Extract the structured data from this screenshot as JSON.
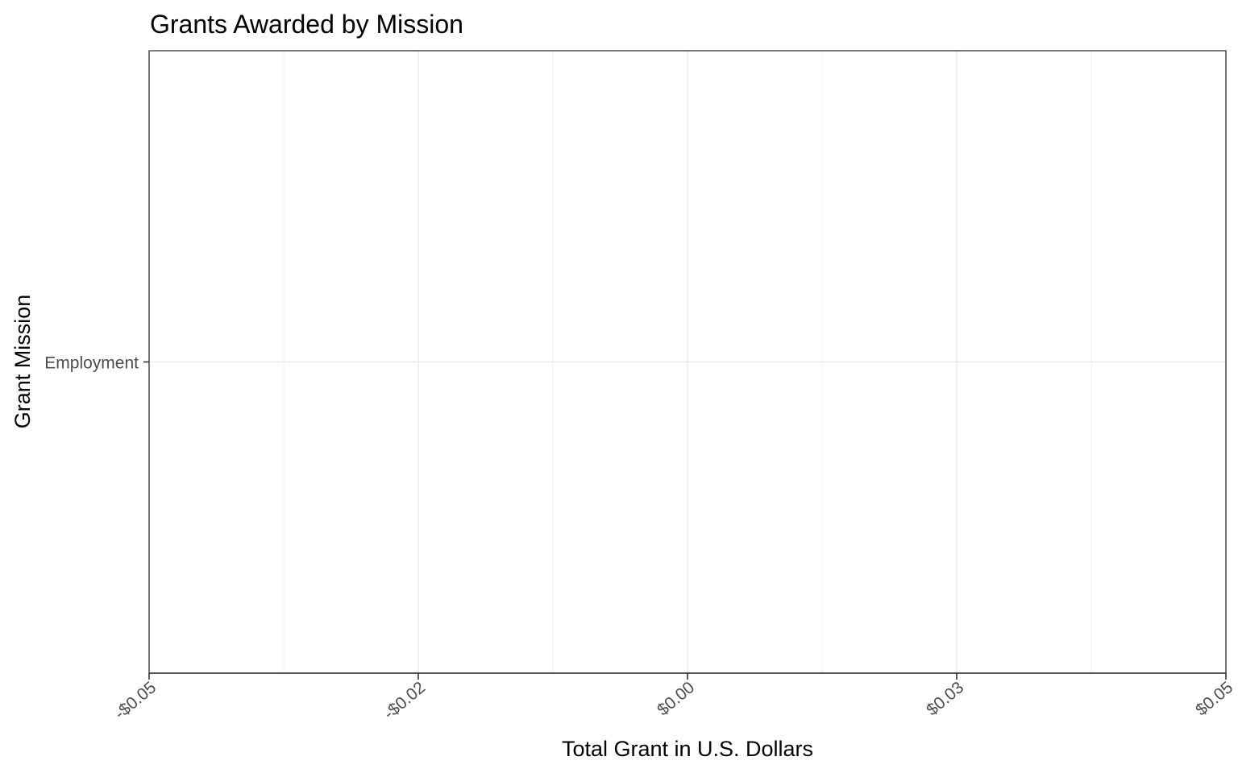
{
  "chart_data": {
    "type": "bar",
    "orientation": "horizontal",
    "title": "Grants Awarded by Mission",
    "xlabel": "Total Grant in U.S. Dollars",
    "ylabel": "Grant Mission",
    "categories": [
      "Employment"
    ],
    "values": [
      0
    ],
    "xlim": [
      -0.05,
      0.05
    ],
    "x_ticks": [
      {
        "value": -0.05,
        "label": "-$0.05"
      },
      {
        "value": -0.025,
        "label": "-$0.02"
      },
      {
        "value": 0,
        "label": "$0.00"
      },
      {
        "value": 0.025,
        "label": "$0.03"
      },
      {
        "value": 0.05,
        "label": "$0.05"
      }
    ],
    "x_minor_ticks": [
      -0.0375,
      -0.0125,
      0.0125,
      0.0375
    ],
    "grid": true,
    "legend": "none",
    "colors": {
      "grid": "#ebebeb",
      "axis": "#333333",
      "tick_text": "#4d4d4d",
      "text": "#000000"
    }
  }
}
